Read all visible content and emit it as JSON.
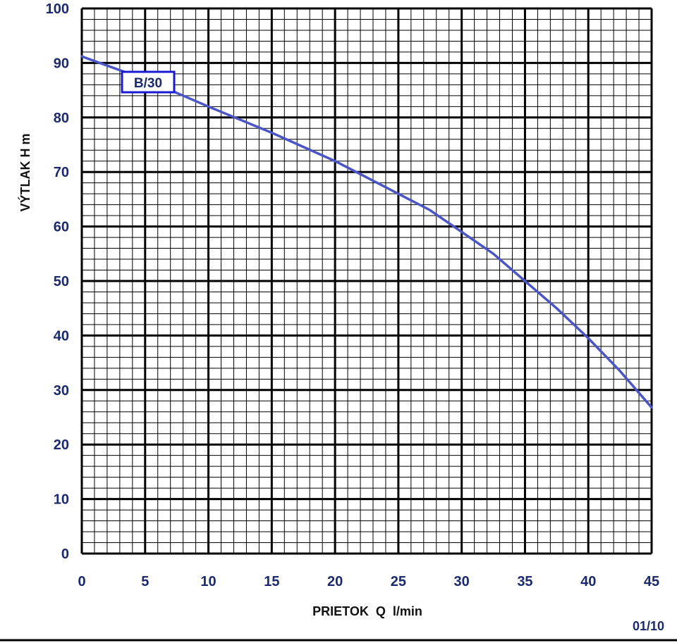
{
  "chart_data": {
    "type": "line",
    "xlabel": "PRIETOK  Q  l/min",
    "ylabel": "VÝTLAK  H  m",
    "xlim": [
      0,
      45
    ],
    "ylim": [
      0,
      100
    ],
    "x_ticks": [
      "0",
      "5",
      "10",
      "15",
      "20",
      "25",
      "30",
      "35",
      "40",
      "45"
    ],
    "y_ticks": [
      "0",
      "10",
      "20",
      "30",
      "40",
      "50",
      "60",
      "70",
      "80",
      "90",
      "100"
    ],
    "x_minor_step": 1,
    "y_minor_step": 2,
    "grid": true,
    "series": [
      {
        "name": "B/30",
        "x": [
          0,
          5,
          10,
          15,
          20,
          25,
          27.5,
          30,
          32.5,
          35,
          37.5,
          40,
          42.5,
          45
        ],
        "y": [
          91.2,
          87,
          82,
          77.2,
          72,
          66,
          63,
          59,
          55,
          50,
          45,
          39.5,
          33.5,
          26.8
        ]
      }
    ],
    "annotation": "01/10"
  },
  "colors": {
    "curve": "#4a55c8",
    "label_border": "#1a1ad6",
    "tick_text": "#1b2a6e",
    "grid": "#000000"
  }
}
